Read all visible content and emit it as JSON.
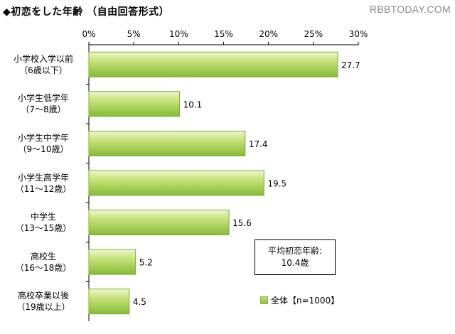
{
  "title": "◆初恋をした年齢 （自由回答形式）",
  "watermark": "RBBTODAY.COM",
  "average_box": {
    "line1": "平均初恋年齢:",
    "line2": "10.4歳"
  },
  "legend": {
    "label": "全体【n=1000】"
  },
  "colors": {
    "bar_light": "#d2e98f",
    "bar_dark": "#8cc03a",
    "bar_border": "#7fae33"
  },
  "chart_data": {
    "type": "bar",
    "orientation": "horizontal",
    "title": "◆初恋をした年齢 （自由回答形式）",
    "xlabel": "",
    "ylabel": "",
    "xlim": [
      0,
      30
    ],
    "x_ticks": [
      "0%",
      "5%",
      "10%",
      "15%",
      "20%",
      "25%",
      "30%"
    ],
    "categories": [
      [
        "小学校入学以前",
        "（6歳以下）"
      ],
      [
        "小学生低学年",
        "（7～8歳）"
      ],
      [
        "小学生中学年",
        "（9～10歳）"
      ],
      [
        "小学生高学年",
        "（11～12歳）"
      ],
      [
        "中学生",
        "（13～15歳）"
      ],
      [
        "高校生",
        "（16～18歳）"
      ],
      [
        "高校卒業以後",
        "（19歳以上）"
      ]
    ],
    "series": [
      {
        "name": "全体【n=1000】",
        "values": [
          27.7,
          10.1,
          17.4,
          19.5,
          15.6,
          5.2,
          4.5
        ]
      }
    ],
    "data_labels": [
      "27.7",
      "10.1",
      "17.4",
      "19.5",
      "15.6",
      "5.2",
      "4.5"
    ],
    "grid": false,
    "legend_position": "bottom-right"
  }
}
